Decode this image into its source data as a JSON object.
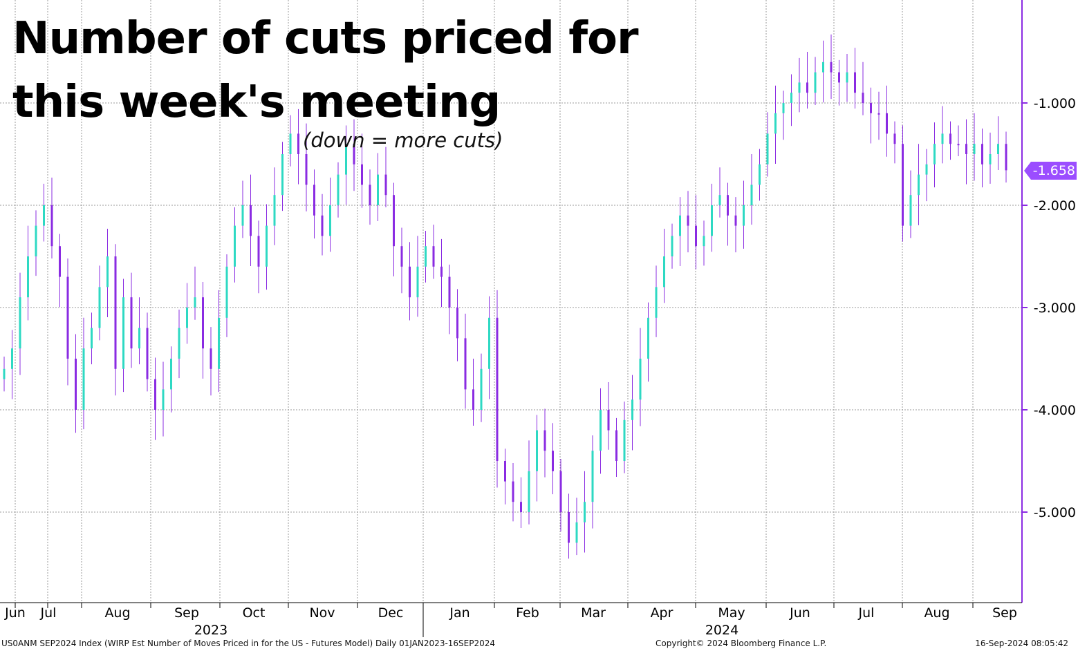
{
  "title": "Number of cuts priced for this week's meeting",
  "subtitle": "(down = more cuts)",
  "footer": {
    "left": "US0ANM SEP2024 Index (WIRP Est Number of Moves Priced in for the US - Futures Model)  Daily 01JAN2023-16SEP2024",
    "middle": "Copyright© 2024 Bloomberg Finance L.P.",
    "right": "16-Sep-2024 08:05:42"
  },
  "colors": {
    "up_candle": "#2ed9c3",
    "down_candle": "#8a2be2",
    "axis": "#8a2be2",
    "last_value_bg": "#9b4dff",
    "grid": "#9a9a9a"
  },
  "chart_data": {
    "type": "candlestick",
    "y_axis": {
      "ticks": [
        -1.0,
        -2.0,
        -3.0,
        -4.0,
        -5.0
      ],
      "tick_labels": [
        "-1.000",
        "-2.000",
        "-3.000",
        "-4.000",
        "-5.000"
      ],
      "ylim": [
        -5.9,
        0.0
      ],
      "side": "right"
    },
    "x_axis": {
      "month_labels": [
        "Jun",
        "Jul",
        "Aug",
        "Sep",
        "Oct",
        "Nov",
        "Dec",
        "Jan",
        "Feb",
        "Mar",
        "Apr",
        "May",
        "Jun",
        "Jul",
        "Aug",
        "Sep"
      ],
      "year_labels": [
        "2023",
        "2024"
      ],
      "range": [
        "2023-06-12",
        "2024-09-16"
      ]
    },
    "grid": true,
    "last_value": -1.658,
    "last_value_label": "-1.658",
    "series_closes": [
      -3.6,
      -3.4,
      -2.9,
      -2.5,
      -2.2,
      -2.0,
      -2.4,
      -2.7,
      -3.5,
      -4.0,
      -3.4,
      -3.2,
      -2.8,
      -2.5,
      -3.6,
      -2.9,
      -3.4,
      -3.2,
      -3.7,
      -4.0,
      -3.8,
      -3.5,
      -3.2,
      -3.0,
      -2.9,
      -3.4,
      -3.6,
      -3.1,
      -2.6,
      -2.2,
      -2.0,
      -2.3,
      -2.6,
      -2.2,
      -1.9,
      -1.5,
      -1.3,
      -1.5,
      -1.8,
      -2.1,
      -2.3,
      -2.0,
      -1.7,
      -1.4,
      -1.6,
      -1.8,
      -2.0,
      -1.7,
      -1.9,
      -2.4,
      -2.6,
      -2.9,
      -2.6,
      -2.4,
      -2.6,
      -2.7,
      -3.0,
      -3.3,
      -3.8,
      -4.0,
      -3.6,
      -3.1,
      -4.5,
      -4.7,
      -4.9,
      -5.0,
      -4.6,
      -4.2,
      -4.4,
      -4.6,
      -5.0,
      -5.3,
      -5.1,
      -4.9,
      -4.4,
      -4.0,
      -4.2,
      -4.5,
      -4.1,
      -3.9,
      -3.5,
      -3.1,
      -2.8,
      -2.5,
      -2.3,
      -2.1,
      -2.2,
      -2.4,
      -2.3,
      -2.0,
      -1.9,
      -2.1,
      -2.2,
      -2.0,
      -1.8,
      -1.6,
      -1.3,
      -1.1,
      -1.0,
      -0.9,
      -0.8,
      -0.9,
      -0.7,
      -0.6,
      -0.7,
      -0.8,
      -0.7,
      -0.9,
      -1.0,
      -1.1,
      -1.1,
      -1.3,
      -1.4,
      -2.2,
      -1.9,
      -1.7,
      -1.6,
      -1.4,
      -1.3,
      -1.4,
      -1.4,
      -1.5,
      -1.4,
      -1.6,
      -1.5,
      -1.4,
      -1.658
    ]
  }
}
